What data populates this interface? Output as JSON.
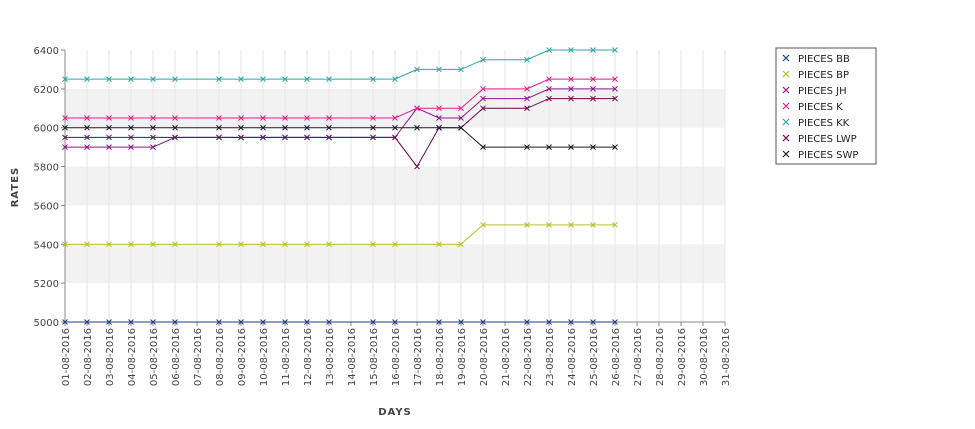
{
  "chart_data": {
    "type": "line",
    "xlabel": "DAYS",
    "ylabel": "RATES",
    "ylim": [
      5000,
      6400
    ],
    "yticks": [
      5000,
      5200,
      5400,
      5600,
      5800,
      6000,
      6200,
      6400
    ],
    "grid": true,
    "legend_placement": "top-right",
    "categories": [
      "01-08-2016",
      "02-08-2016",
      "03-08-2016",
      "04-08-2016",
      "05-08-2016",
      "06-08-2016",
      "07-08-2016",
      "08-08-2016",
      "09-08-2016",
      "10-08-2016",
      "11-08-2016",
      "12-08-2016",
      "13-08-2016",
      "14-08-2016",
      "15-08-2016",
      "16-08-2016",
      "17-08-2016",
      "18-08-2016",
      "19-08-2016",
      "20-08-2016",
      "21-08-2016",
      "22-08-2016",
      "23-08-2016",
      "24-08-2016",
      "25-08-2016",
      "26-08-2016",
      "27-08-2016",
      "28-08-2016",
      "29-08-2016",
      "30-08-2016",
      "31-08-2016"
    ],
    "series": [
      {
        "name": "PIECES BB",
        "color": "#1f3f7f",
        "values": [
          5000,
          5000,
          5000,
          5000,
          5000,
          5000,
          null,
          5000,
          5000,
          5000,
          5000,
          5000,
          5000,
          null,
          5000,
          5000,
          null,
          5000,
          5000,
          5000,
          null,
          5000,
          5000,
          5000,
          5000,
          5000,
          null,
          null,
          null,
          null,
          null
        ]
      },
      {
        "name": "PIECES BP",
        "color": "#b8bf2a",
        "values": [
          5400,
          5400,
          5400,
          5400,
          5400,
          5400,
          null,
          5400,
          5400,
          5400,
          5400,
          5400,
          5400,
          null,
          5400,
          5400,
          null,
          5400,
          5400,
          5500,
          null,
          5500,
          5500,
          5500,
          5500,
          5500,
          null,
          null,
          null,
          null,
          null
        ]
      },
      {
        "name": "PIECES JH",
        "color": "#8c1a8c",
        "values": [
          5900,
          5900,
          5900,
          5900,
          5900,
          5950,
          null,
          5950,
          5950,
          5950,
          5950,
          5950,
          5950,
          null,
          5950,
          5950,
          6100,
          6050,
          6050,
          6150,
          null,
          6150,
          6200,
          6200,
          6200,
          6200,
          null,
          null,
          null,
          null,
          null
        ]
      },
      {
        "name": "PIECES K",
        "color": "#e0218a",
        "values": [
          6050,
          6050,
          6050,
          6050,
          6050,
          6050,
          null,
          6050,
          6050,
          6050,
          6050,
          6050,
          6050,
          null,
          6050,
          6050,
          6100,
          6100,
          6100,
          6200,
          null,
          6200,
          6250,
          6250,
          6250,
          6250,
          null,
          null,
          null,
          null,
          null
        ]
      },
      {
        "name": "PIECES KK",
        "color": "#2aa8a8",
        "values": [
          6250,
          6250,
          6250,
          6250,
          6250,
          6250,
          null,
          6250,
          6250,
          6250,
          6250,
          6250,
          6250,
          null,
          6250,
          6250,
          6300,
          6300,
          6300,
          6350,
          null,
          6350,
          6400,
          6400,
          6400,
          6400,
          null,
          null,
          null,
          null,
          null
        ]
      },
      {
        "name": "PIECES LWP",
        "color": "#6a0a4a",
        "values": [
          5950,
          5950,
          5950,
          5950,
          5950,
          5950,
          null,
          5950,
          5950,
          5950,
          5950,
          5950,
          5950,
          null,
          5950,
          5950,
          5800,
          6000,
          6000,
          6100,
          null,
          6100,
          6150,
          6150,
          6150,
          6150,
          null,
          null,
          null,
          null,
          null
        ]
      },
      {
        "name": "PIECES SWP",
        "color": "#1a1a2e",
        "values": [
          6000,
          6000,
          6000,
          6000,
          6000,
          6000,
          null,
          6000,
          6000,
          6000,
          6000,
          6000,
          6000,
          null,
          6000,
          6000,
          6000,
          6000,
          6000,
          5900,
          null,
          5900,
          5900,
          5900,
          5900,
          5900,
          null,
          null,
          null,
          null,
          null
        ]
      }
    ]
  }
}
